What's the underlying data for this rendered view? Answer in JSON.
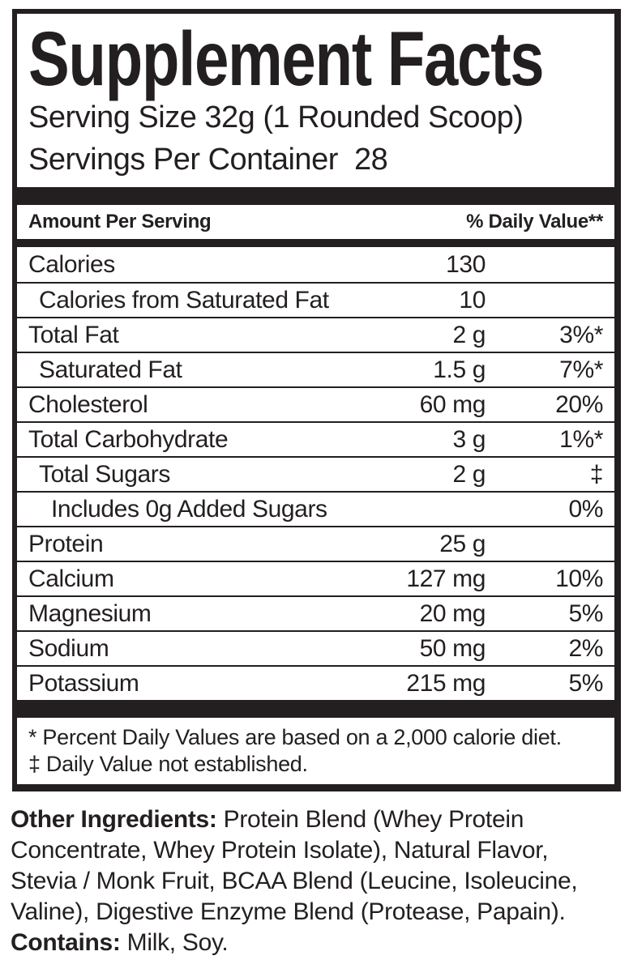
{
  "label": {
    "title": "Supplement Facts",
    "serving_size": "Serving Size 32g (1 Rounded Scoop)",
    "servings_per_container": "Servings Per Container  28",
    "column_headers": {
      "left": "Amount Per Serving",
      "right": "% Daily Value**"
    },
    "rows": [
      {
        "name": "Calories",
        "amount": "130",
        "dv": "",
        "indent": 0
      },
      {
        "name": "Calories from Saturated Fat",
        "amount": "10",
        "dv": "",
        "indent": 1
      },
      {
        "name": "Total Fat",
        "amount": "2 g",
        "dv": "3%*",
        "indent": 0
      },
      {
        "name": "Saturated Fat",
        "amount": "1.5 g",
        "dv": "7%*",
        "indent": 1
      },
      {
        "name": "Cholesterol",
        "amount": "60 mg",
        "dv": "20%",
        "indent": 0
      },
      {
        "name": "Total Carbohydrate",
        "amount": "3 g",
        "dv": "1%*",
        "indent": 0
      },
      {
        "name": "Total Sugars",
        "amount": "2 g",
        "dv": "‡",
        "indent": 1
      },
      {
        "name": "Includes 0g Added Sugars",
        "amount": "",
        "dv": "0%",
        "indent": 2
      },
      {
        "name": "Protein",
        "amount": "25 g",
        "dv": "",
        "indent": 0
      },
      {
        "name": "Calcium",
        "amount": "127 mg",
        "dv": "10%",
        "indent": 0
      },
      {
        "name": "Magnesium",
        "amount": "20 mg",
        "dv": "5%",
        "indent": 0
      },
      {
        "name": "Sodium",
        "amount": "50 mg",
        "dv": "2%",
        "indent": 0
      },
      {
        "name": "Potassium",
        "amount": "215 mg",
        "dv": "5%",
        "indent": 0
      }
    ],
    "footnotes": [
      "* Percent Daily Values are based on a 2,000 calorie diet.",
      "‡ Daily Value not established."
    ],
    "other_ingredients_label": "Other Ingredients:",
    "other_ingredients_text": " Protein Blend (Whey Protein Concentrate, Whey Protein Isolate), Natural Flavor, Stevia / Monk Fruit, BCAA Blend (Leucine, Isoleucine, Valine), Digestive Enzyme Blend (Protease, Papain).",
    "contains_label": "Contains:",
    "contains_text": " Milk, Soy.",
    "colors": {
      "ink": "#231f20",
      "background": "#ffffff"
    }
  }
}
